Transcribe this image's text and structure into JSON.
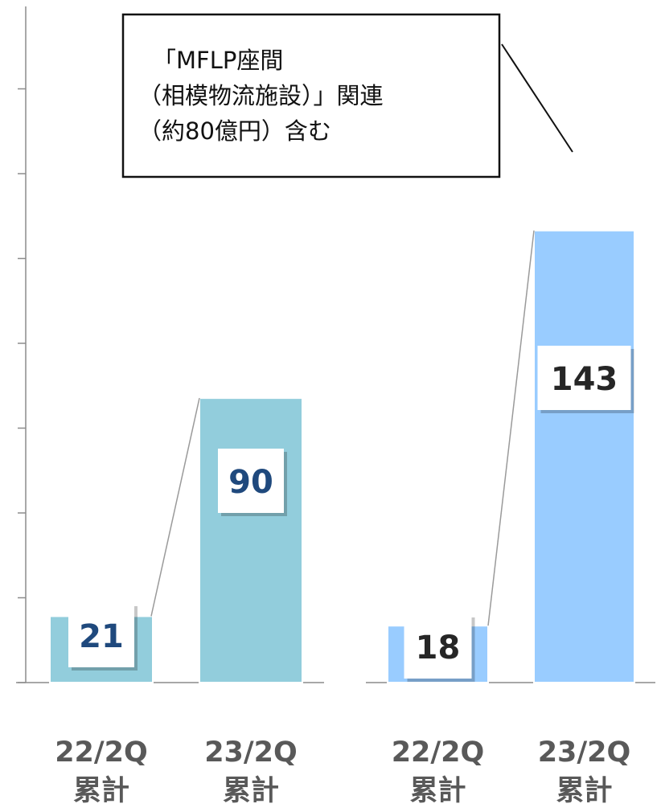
{
  "chart_data": [
    {
      "type": "bar",
      "categories": [
        "22/2Q\n累計",
        "23/2Q\n累計"
      ],
      "values": [
        21,
        90
      ],
      "ylim": [
        0,
        160
      ],
      "color": "#92CDDC",
      "label_color": "#1F497D"
    },
    {
      "type": "bar",
      "categories": [
        "22/2Q\n累計",
        "23/2Q\n累計"
      ],
      "values": [
        18,
        143
      ],
      "ylim": [
        0,
        160
      ],
      "color": "#99CCFF",
      "label_color": "#262626",
      "annotation": {
        "lines": [
          "「MFLP座間",
          "（相模物流施設）」関連",
          "（約80億円）含む"
        ]
      }
    }
  ]
}
